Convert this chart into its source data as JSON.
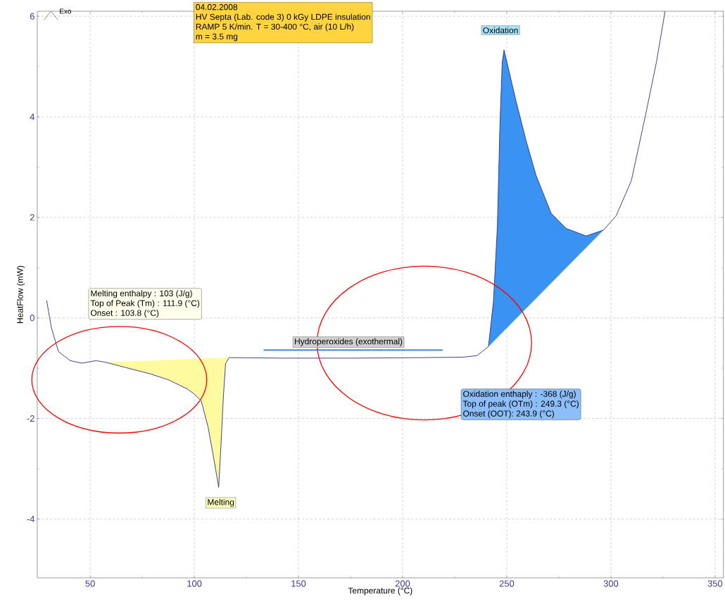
{
  "chart_data": {
    "type": "line",
    "xlabel": "Temperature (°C)",
    "ylabel": "HeatFlow (mW)",
    "xlim": [
      24.6,
      354
    ],
    "ylim": [
      -5.17,
      6.1
    ],
    "xticks": [
      50,
      100,
      150,
      200,
      250,
      300,
      350
    ],
    "yticks": [
      -4,
      -2,
      0,
      2,
      4,
      6
    ],
    "grid": true,
    "marker": "none",
    "line_style": "solid",
    "series": [
      {
        "type": "area",
        "color": "#fdfaa0",
        "x": [
          57.2,
          67.3,
          78.6,
          87.5,
          96.5,
          99.9,
          103.3,
          106.6,
          109.4,
          111.7,
          112.8,
          113.9,
          115,
          116.7
        ],
        "values": [
          -0.88,
          -0.99,
          -1.11,
          -1.23,
          -1.41,
          -1.51,
          -1.65,
          -2.17,
          -2.81,
          -3.37,
          -2.53,
          -1.6,
          -0.91,
          -0.79
        ]
      },
      {
        "type": "area",
        "color": "#3a93f0",
        "x": [
          241.2,
          243.6,
          245.5,
          246.7,
          247.8,
          248.7,
          254.4,
          259.3,
          264.1,
          271.3,
          278.5,
          288.1,
          296.5
        ],
        "values": [
          -0.57,
          0.33,
          1.83,
          3.82,
          5.08,
          5.33,
          4.32,
          3.52,
          2.83,
          2.08,
          1.78,
          1.63,
          1.75
        ]
      },
      {
        "color": "#1c7fd6",
        "x": [
          133.3,
          219.2
        ],
        "values": [
          -0.64,
          -0.64
        ]
      },
      {
        "color": "#2e2e86",
        "x": [
          29.1,
          31.4,
          34.8,
          40.4,
          46,
          52.8,
          57.2,
          67.3,
          78.6,
          87.5,
          96.5,
          99.9,
          103.3,
          106.6,
          109.4,
          111.7,
          112.8,
          113.9,
          115,
          116.7,
          119.5,
          141.4,
          175.1,
          208.8,
          229,
          235.7,
          241.2,
          243.6,
          245.5,
          246.7,
          247.8,
          248.7,
          254.4,
          259.3,
          264.1,
          271.3,
          278.5,
          288.1,
          296.5,
          302.5,
          309.8,
          316.8,
          321.8,
          326
        ],
        "values": [
          0.35,
          -0.2,
          -0.67,
          -0.85,
          -0.9,
          -0.85,
          -0.88,
          -0.99,
          -1.11,
          -1.23,
          -1.41,
          -1.51,
          -1.65,
          -2.17,
          -2.81,
          -3.37,
          -2.53,
          -1.6,
          -0.91,
          -0.79,
          -0.79,
          -0.8,
          -0.8,
          -0.79,
          -0.78,
          -0.75,
          -0.57,
          0.33,
          1.83,
          3.82,
          5.08,
          5.33,
          4.32,
          3.52,
          2.83,
          2.08,
          1.78,
          1.63,
          1.75,
          2.03,
          2.73,
          4.07,
          5.08,
          6.1
        ]
      }
    ],
    "annotations": [
      "04.02.2008",
      "HV Septa (Lab. code 3) 0 kGy LDPE insulation",
      "RAMP 5 K/min. T = 30-400 °C, air (10 L/h)",
      "m = 3.5 mg",
      "Melting enthalpy :  103 (J/g)",
      "Top of Peak (Tm) :  111.9 (°C)",
      "Onset :  103.8 (°C)",
      "Oxidation enthaply :  -368 (J/g)",
      "Top of peak (OTm) :  249.3 (°C)",
      "Onset (OOT):  243.9 (°C)",
      "Exo",
      {
        "text": "Hydroperoxides (exothermal)",
        "x": 176,
        "y": -0.64
      },
      {
        "text": "Melting",
        "x": 111.7,
        "y": -3.37
      },
      {
        "text": "Oxidation",
        "x": 248.7,
        "y": 5.33
      }
    ]
  }
}
